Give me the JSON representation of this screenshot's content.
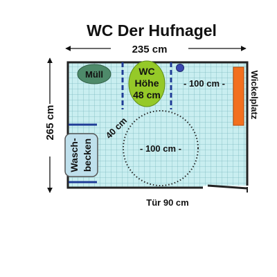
{
  "title": "WC Der Hufnagel",
  "width_label": "235 cm",
  "height_label": "265 cm",
  "door_label": "Tür 90 cm",
  "wc": {
    "line1": "WC",
    "line2": "Höhe",
    "line3": "48 cm"
  },
  "trash_label": "Müll",
  "sink": {
    "line1": "Wasch-",
    "line2": "becken"
  },
  "changing_table_label": "Wickelplatz",
  "turning_circle_label": "- 100 cm -",
  "right_clearance_label": "- 100 cm -",
  "side_clearance_label": "40 cm",
  "colors": {
    "tile_fill": "#c9eef0",
    "tile_grid": "#7cbac0",
    "wall": "#222222",
    "trash_fill": "#4e8a6a",
    "wc_fill": "#95c928",
    "changing_fill": "#f2701f",
    "grab_bar": "#1f3c96",
    "sink_fill": "#bfe0ec"
  }
}
